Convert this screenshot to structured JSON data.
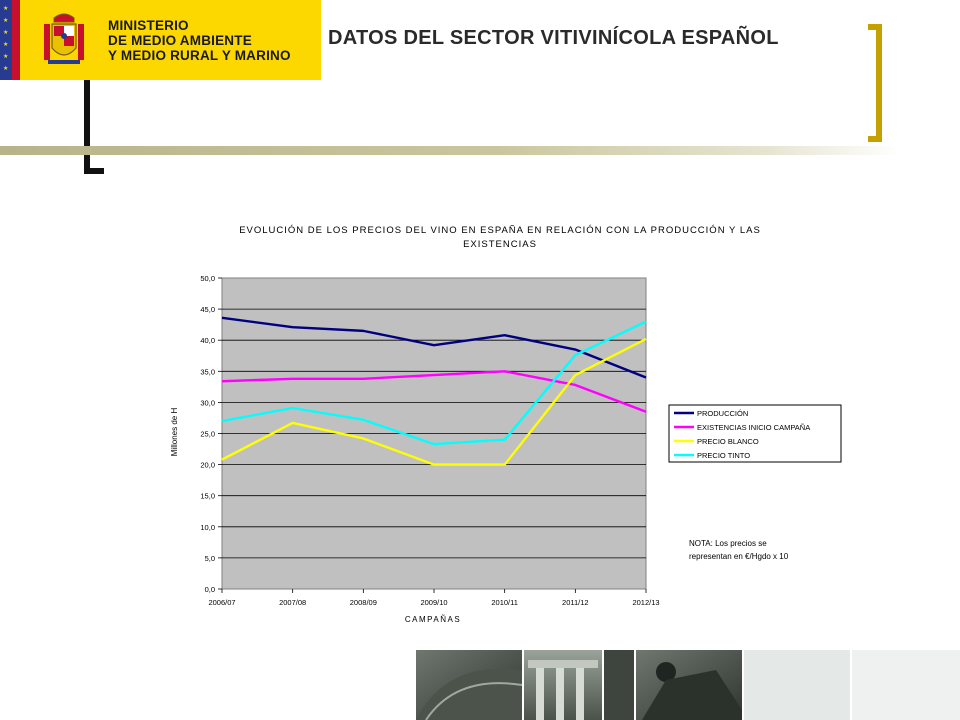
{
  "header": {
    "ministry_lines": [
      "MINISTERIO",
      "DE MEDIO AMBIENTE",
      "Y MEDIO RURAL Y MARINO"
    ],
    "page_title": "DATOS DEL SECTOR VITIVINÍCOLA ESPAÑOL"
  },
  "colors": {
    "brand_yellow": "#fcd800",
    "bracket_gold": "#c4a000",
    "plot_background": "#c0c0c0"
  },
  "chart_data": {
    "type": "line",
    "title_lines": [
      "EVOLUCIÓN DE LOS PRECIOS DEL VINO EN ESPAÑA EN RELACIÓN CON LA PRODUCCIÓN Y LAS",
      "EXISTENCIAS"
    ],
    "xlabel": "CAMPAÑAS",
    "ylabel": "Millones de H",
    "categories": [
      "2006/07",
      "2007/08",
      "2008/09",
      "2009/10",
      "2010/11",
      "2011/12",
      "2012/13"
    ],
    "ylim": [
      0,
      50
    ],
    "yticks": [
      "0,0",
      "5,0",
      "10,0",
      "15,0",
      "20,0",
      "25,0",
      "30,0",
      "35,0",
      "40,0",
      "45,0",
      "50,0"
    ],
    "grid": true,
    "legend_position": "right",
    "series": [
      {
        "name": "PRODUCCIÓN",
        "color": "#000080",
        "values": [
          43.6,
          42.1,
          41.5,
          39.2,
          40.8,
          38.5,
          34.0
        ]
      },
      {
        "name": "EXISTENCIAS INICIO CAMPAÑA",
        "color": "#ff00ff",
        "values": [
          33.4,
          33.8,
          33.8,
          34.4,
          35.0,
          32.8,
          28.5
        ]
      },
      {
        "name": "PRECIO BLANCO",
        "color": "#ffff00",
        "values": [
          20.8,
          26.7,
          24.2,
          20.0,
          20.0,
          34.4,
          40.2
        ]
      },
      {
        "name": "PRECIO TINTO",
        "color": "#00ffff",
        "values": [
          27.0,
          29.1,
          27.2,
          23.3,
          24.0,
          37.6,
          43.0
        ]
      }
    ],
    "note_lines": [
      "NOTA: Los precios se",
      "representan en €/Hgdo x 10"
    ]
  }
}
